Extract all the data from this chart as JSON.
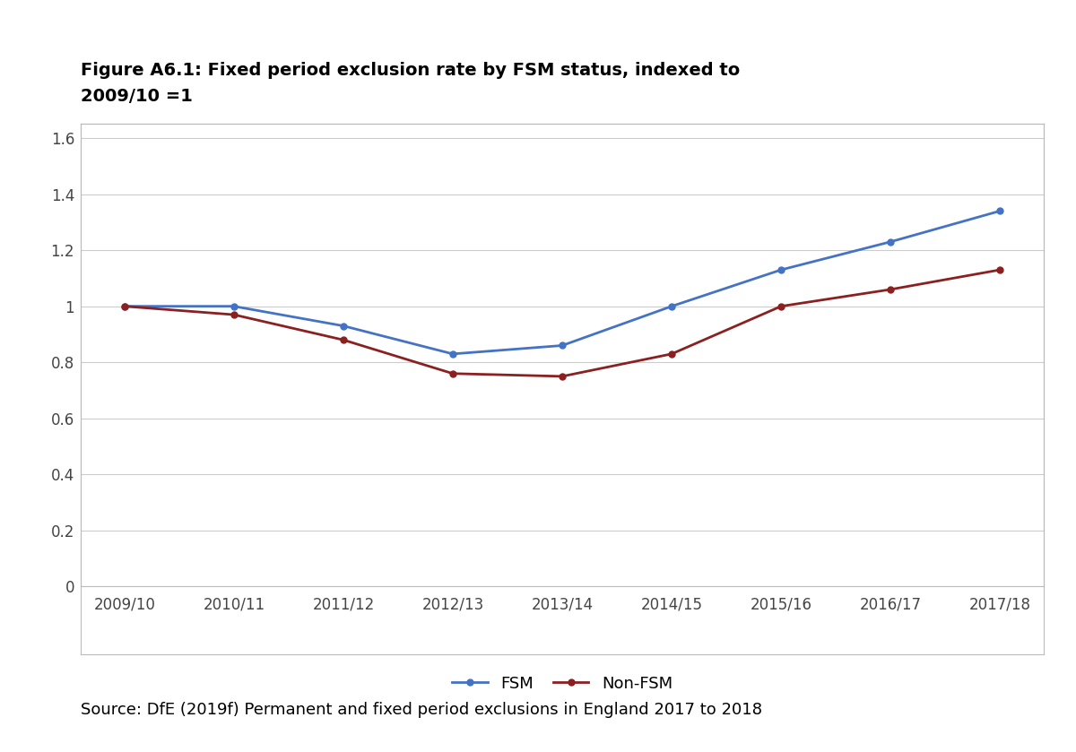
{
  "title_line1": "Figure A6.1: Fixed period exclusion rate by FSM status, indexed to",
  "title_line2": "2009/10 =1",
  "categories": [
    "2009/10",
    "2010/11",
    "2011/12",
    "2012/13",
    "2013/14",
    "2014/15",
    "2015/16",
    "2016/17",
    "2017/18"
  ],
  "fsm": [
    1.0,
    1.0,
    0.93,
    0.83,
    0.86,
    1.0,
    1.13,
    1.23,
    1.34
  ],
  "non_fsm": [
    1.0,
    0.97,
    0.88,
    0.76,
    0.75,
    0.83,
    1.0,
    1.06,
    1.13
  ],
  "fsm_color": "#4472C4",
  "non_fsm_color": "#8B2020",
  "fsm_label": "FSM",
  "non_fsm_label": "Non-FSM",
  "ylim": [
    0,
    1.65
  ],
  "yticks": [
    0,
    0.2,
    0.4,
    0.6,
    0.8,
    1.0,
    1.2,
    1.4,
    1.6
  ],
  "ytick_labels": [
    "0",
    "0.2",
    "0.4",
    "0.6",
    "0.8",
    "1",
    "1.2",
    "1.4",
    "1.6"
  ],
  "source_text": "Source: DfE (2019f) Permanent and fixed period exclusions in England 2017 to 2018",
  "background_color": "#ffffff",
  "plot_background": "#ffffff",
  "grid_color": "#cccccc",
  "line_width": 2.0,
  "marker": "o",
  "marker_size": 5,
  "box_border_color": "#bbbbbb"
}
